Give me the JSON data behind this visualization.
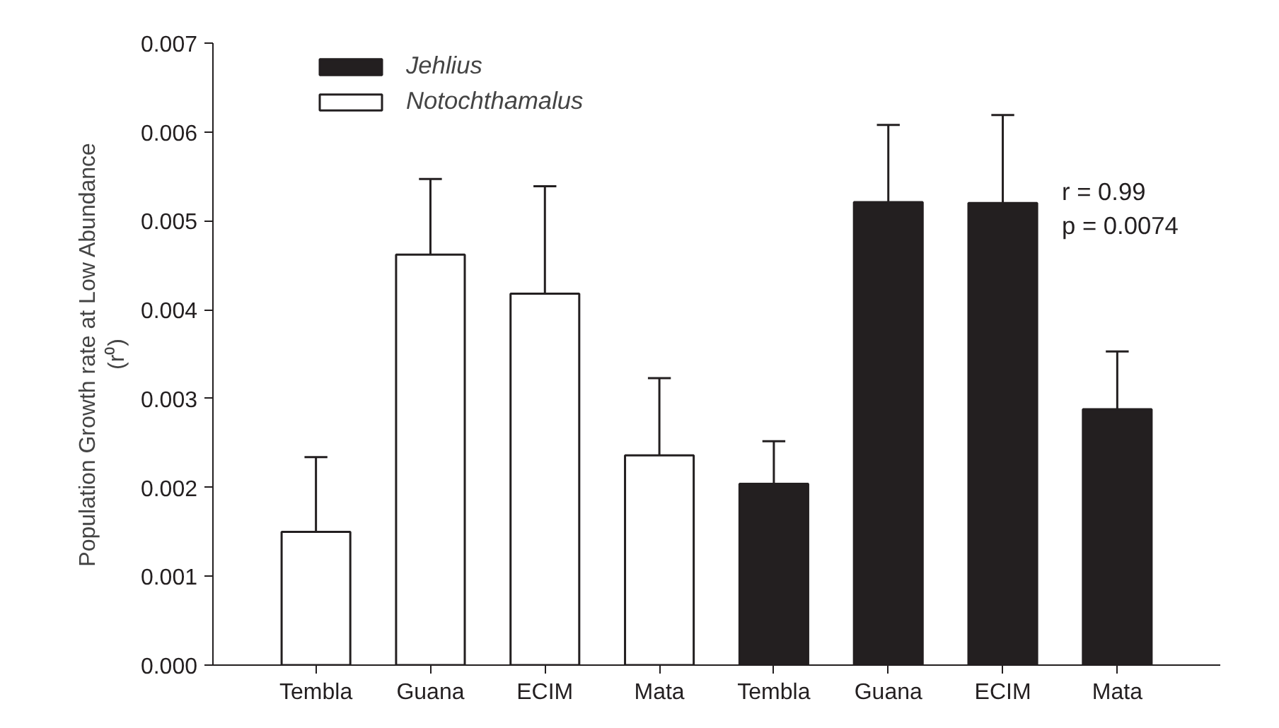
{
  "chart_data": {
    "type": "bar",
    "ylabel": "Population Growth rate at Low Abundance\n(r⁰)",
    "categories": [
      "Tembla",
      "Guana",
      "ECIM",
      "Mata",
      "Tembla",
      "Guana",
      "ECIM",
      "Mata"
    ],
    "series": [
      {
        "name": "Jehlius",
        "color": "#231f20",
        "values": [
          null,
          null,
          null,
          null,
          0.00204,
          0.00521,
          0.0052,
          0.00288
        ],
        "errors": [
          null,
          null,
          null,
          null,
          [
            0.00204,
            0.00252
          ],
          [
            0.00521,
            0.00608
          ],
          [
            0.0052,
            0.00619
          ],
          [
            0.00288,
            0.00353
          ]
        ]
      },
      {
        "name": "Notochthamalus",
        "color": "#ffffff",
        "values": [
          0.0015,
          0.00462,
          0.00418,
          0.00236,
          null,
          null,
          null,
          null
        ],
        "errors": [
          [
            0.0015,
            0.00234
          ],
          [
            0.00462,
            0.00547
          ],
          [
            0.00418,
            0.00539
          ],
          [
            0.00236,
            0.00323
          ],
          null,
          null,
          null,
          null
        ]
      }
    ],
    "ylim": [
      0,
      0.007
    ],
    "yticks": [
      {
        "value": 0,
        "label": "0.000"
      },
      {
        "value": 0.001,
        "label": "0.001"
      },
      {
        "value": 0.002,
        "label": "0.002"
      },
      {
        "value": 0.003,
        "label": "0.003"
      },
      {
        "value": 0.004,
        "label": "0.004"
      },
      {
        "value": 0.005,
        "label": "0.005"
      },
      {
        "value": 0.006,
        "label": "0.006"
      },
      {
        "value": 0.007,
        "label": "0.007"
      }
    ],
    "annotations": [
      "r = 0.99",
      "p = 0.0074"
    ],
    "legend": "top left",
    "grid": false
  }
}
